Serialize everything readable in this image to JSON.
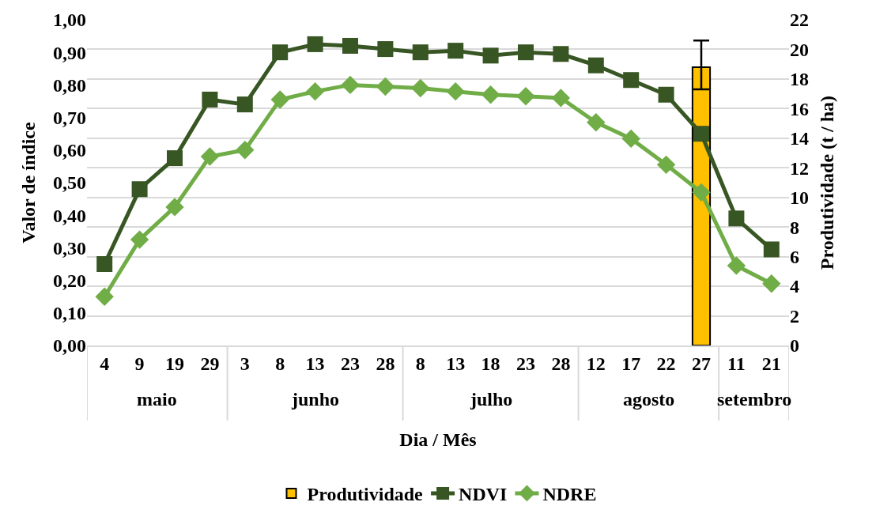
{
  "chart_data": {
    "type": "line",
    "xlabel": "Dia / Mês",
    "ylabel": "Valor de índice",
    "y2label": "Produtividade (t / ha)",
    "categories": [
      "4",
      "9",
      "19",
      "29",
      "3",
      "8",
      "13",
      "23",
      "28",
      "8",
      "13",
      "18",
      "23",
      "28",
      "12",
      "17",
      "22",
      "27",
      "11",
      "21"
    ],
    "annotations": [
      "maio",
      "junho",
      "julho",
      "agosto",
      "setembro"
    ],
    "series": [
      {
        "name": "Produtividade",
        "type": "bar",
        "axis": "y2",
        "color": "#ffc000",
        "values": [
          null,
          null,
          null,
          null,
          null,
          null,
          null,
          null,
          null,
          null,
          null,
          null,
          null,
          null,
          null,
          null,
          null,
          18.8,
          null,
          null
        ],
        "errors": [
          null,
          null,
          null,
          null,
          null,
          null,
          null,
          null,
          null,
          null,
          null,
          null,
          null,
          null,
          null,
          null,
          null,
          [
            17.3,
            20.6
          ],
          null,
          null
        ]
      },
      {
        "name": "NDVI",
        "marker": "square",
        "color": "#375623",
        "values": [
          0.25,
          0.48,
          0.575,
          0.755,
          0.74,
          0.9,
          0.925,
          0.92,
          0.91,
          0.9,
          0.905,
          0.89,
          0.9,
          0.895,
          0.86,
          0.815,
          0.77,
          0.65,
          0.39,
          0.295
        ]
      },
      {
        "name": "NDRE",
        "marker": "diamond",
        "color": "#70ad47",
        "values": [
          0.15,
          0.325,
          0.425,
          0.58,
          0.6,
          0.755,
          0.78,
          0.8,
          0.795,
          0.79,
          0.78,
          0.77,
          0.765,
          0.76,
          0.685,
          0.635,
          0.555,
          0.47,
          0.245,
          0.19
        ]
      }
    ],
    "ylim": [
      0,
      1
    ],
    "yticks": [
      {
        "value": 0,
        "label": "0,00"
      },
      {
        "value": 0.1,
        "label": "0,10"
      },
      {
        "value": 0.2,
        "label": "0,20"
      },
      {
        "value": 0.3,
        "label": "0,30"
      },
      {
        "value": 0.4,
        "label": "0,40"
      },
      {
        "value": 0.5,
        "label": "0,50"
      },
      {
        "value": 0.6,
        "label": "0,60"
      },
      {
        "value": 0.7,
        "label": "0,70"
      },
      {
        "value": 0.8,
        "label": "0,80"
      },
      {
        "value": 0.9,
        "label": "0,90"
      },
      {
        "value": 1,
        "label": "1,00"
      }
    ],
    "y2lim": [
      0,
      22
    ],
    "y2ticks": [
      0,
      2,
      4,
      6,
      8,
      10,
      12,
      14,
      16,
      18,
      20,
      22
    ],
    "grid": "y2",
    "legend": "bottom"
  }
}
